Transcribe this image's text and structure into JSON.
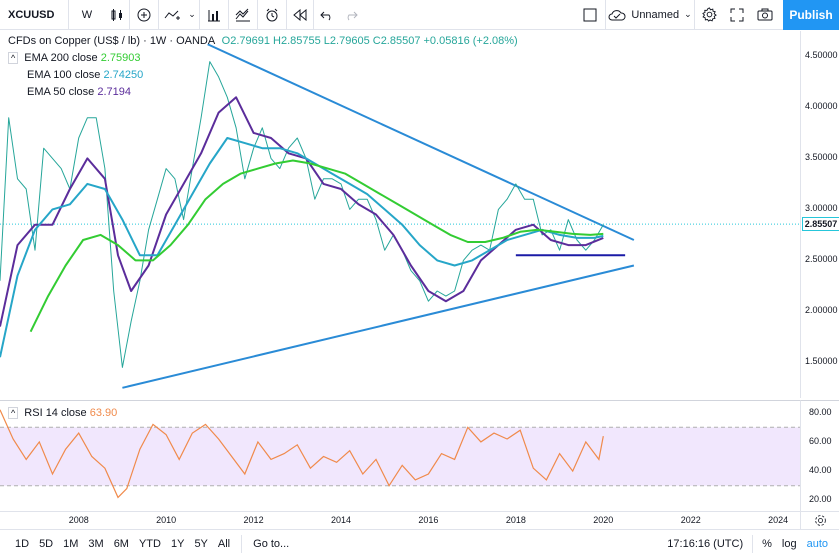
{
  "toolbar": {
    "symbol": "XCUUSD",
    "interval": "W",
    "layout_name": "Unnamed",
    "publish_label": "Publish"
  },
  "legend": {
    "title": "CFDs on Copper (US$ / lb) · 1W · OANDA",
    "ohlc": "O2.79691 H2.85755 L2.79605 C2.85507 +0.05816 (+2.08%)",
    "ema200_label": "EMA 200 close",
    "ema200_value": "2.75903",
    "ema100_label": "EMA 100 close",
    "ema100_value": "2.74250",
    "ema50_label": "EMA 50 close",
    "ema50_value": "2.7194",
    "rsi_label": "RSI 14 close",
    "rsi_value": "63.90"
  },
  "colors": {
    "accent": "#2196f3",
    "ema200": "#33cc33",
    "ema100": "#26a6c8",
    "ema50": "#5b2d9b",
    "rsi": "#f08a4b",
    "trendline": "#2a8bd6",
    "support": "#1a1aa6",
    "rsi_band": "#e8d7fb",
    "candle_up": "#26a69a",
    "candle_down": "#ef5350"
  },
  "chart_data": [
    {
      "type": "line",
      "title": "CFDs on Copper (US$ / lb) · 1W · OANDA",
      "ylim": [
        1.15,
        4.75
      ],
      "xlim": [
        2006.2,
        2024.5
      ],
      "y_ticks": [
        "4.50000",
        "4.00000",
        "3.50000",
        "3.00000",
        "2.50000",
        "2.00000",
        "1.50000"
      ],
      "y_tick_values": [
        4.5,
        4.0,
        3.5,
        3.0,
        2.5,
        2.0,
        1.5
      ],
      "x_ticks": [
        "2008",
        "2010",
        "2012",
        "2014",
        "2016",
        "2018",
        "2020",
        "2022",
        "2024"
      ],
      "x_tick_values": [
        2008,
        2010,
        2012,
        2014,
        2016,
        2018,
        2020,
        2022,
        2024
      ],
      "last_price": "2.85507",
      "last_price_value": 2.855,
      "series": [
        {
          "name": "XCUUSD",
          "x": [
            2006.2,
            2006.4,
            2006.6,
            2006.8,
            2007.0,
            2007.2,
            2007.4,
            2007.6,
            2007.8,
            2008.0,
            2008.2,
            2008.4,
            2008.6,
            2008.8,
            2009.0,
            2009.2,
            2009.4,
            2009.6,
            2009.8,
            2010.0,
            2010.2,
            2010.4,
            2010.6,
            2010.8,
            2011.0,
            2011.2,
            2011.4,
            2011.6,
            2011.8,
            2012.0,
            2012.2,
            2012.4,
            2012.6,
            2012.8,
            2013.0,
            2013.2,
            2013.4,
            2013.6,
            2013.8,
            2014.0,
            2014.2,
            2014.4,
            2014.6,
            2014.8,
            2015.0,
            2015.2,
            2015.4,
            2015.6,
            2015.8,
            2016.0,
            2016.2,
            2016.4,
            2016.6,
            2016.8,
            2017.0,
            2017.2,
            2017.4,
            2017.6,
            2017.8,
            2018.0,
            2018.2,
            2018.4,
            2018.6,
            2018.8,
            2019.0,
            2019.2,
            2019.4,
            2019.6,
            2019.8,
            2020.0
          ],
          "values": [
            2.3,
            3.9,
            3.3,
            3.2,
            2.6,
            3.6,
            3.5,
            3.4,
            3.2,
            3.7,
            3.9,
            3.9,
            3.4,
            2.2,
            1.45,
            1.9,
            2.3,
            2.8,
            3.1,
            3.4,
            3.3,
            2.9,
            3.4,
            3.9,
            4.45,
            4.3,
            4.1,
            3.8,
            3.3,
            3.6,
            3.8,
            3.5,
            3.4,
            3.6,
            3.7,
            3.5,
            3.1,
            3.3,
            3.3,
            3.25,
            3.0,
            3.1,
            3.1,
            2.9,
            2.6,
            2.75,
            2.6,
            2.4,
            2.3,
            2.1,
            2.2,
            2.15,
            2.2,
            2.5,
            2.6,
            2.65,
            2.6,
            3.0,
            3.1,
            3.25,
            3.1,
            3.1,
            2.75,
            2.8,
            2.6,
            2.9,
            2.7,
            2.6,
            2.7,
            2.85
          ]
        },
        {
          "name": "EMA 50 close",
          "x": [
            2006.2,
            2006.6,
            2007.0,
            2007.4,
            2007.8,
            2008.2,
            2008.6,
            2008.9,
            2009.2,
            2009.6,
            2010.0,
            2010.4,
            2010.8,
            2011.2,
            2011.6,
            2012.0,
            2012.4,
            2012.8,
            2013.2,
            2013.6,
            2014.0,
            2014.4,
            2014.8,
            2015.2,
            2015.6,
            2016.0,
            2016.4,
            2016.8,
            2017.2,
            2017.6,
            2018.0,
            2018.4,
            2018.8,
            2019.2,
            2019.6,
            2020.0
          ],
          "values": [
            1.85,
            2.65,
            2.85,
            2.85,
            3.2,
            3.5,
            3.3,
            2.55,
            2.2,
            2.45,
            2.95,
            3.25,
            3.55,
            3.95,
            4.1,
            3.75,
            3.7,
            3.55,
            3.5,
            3.25,
            3.2,
            3.05,
            2.95,
            2.75,
            2.45,
            2.2,
            2.1,
            2.2,
            2.5,
            2.65,
            2.8,
            2.85,
            2.7,
            2.65,
            2.65,
            2.72
          ]
        },
        {
          "name": "EMA 100 close",
          "x": [
            2006.2,
            2006.6,
            2007.0,
            2007.4,
            2007.8,
            2008.2,
            2008.6,
            2009.0,
            2009.4,
            2009.8,
            2010.2,
            2010.6,
            2011.0,
            2011.4,
            2011.8,
            2012.2,
            2012.6,
            2013.0,
            2013.4,
            2013.8,
            2014.2,
            2014.6,
            2015.0,
            2015.4,
            2015.8,
            2016.2,
            2016.6,
            2017.0,
            2017.4,
            2017.8,
            2018.2,
            2018.6,
            2019.0,
            2019.4,
            2019.8,
            2020.0
          ],
          "values": [
            1.55,
            2.35,
            2.8,
            3.0,
            3.05,
            3.25,
            3.2,
            2.9,
            2.55,
            2.55,
            2.85,
            3.15,
            3.45,
            3.7,
            3.65,
            3.6,
            3.6,
            3.55,
            3.45,
            3.35,
            3.25,
            3.15,
            3.0,
            2.85,
            2.65,
            2.5,
            2.45,
            2.5,
            2.6,
            2.7,
            2.75,
            2.8,
            2.75,
            2.72,
            2.72,
            2.74
          ]
        },
        {
          "name": "EMA 200 close",
          "x": [
            2006.9,
            2007.3,
            2007.7,
            2008.1,
            2008.5,
            2008.9,
            2009.3,
            2009.7,
            2010.1,
            2010.5,
            2010.9,
            2011.3,
            2011.7,
            2012.1,
            2012.5,
            2012.9,
            2013.3,
            2013.7,
            2014.1,
            2014.5,
            2014.9,
            2015.3,
            2015.7,
            2016.1,
            2016.5,
            2016.9,
            2017.3,
            2017.7,
            2018.1,
            2018.5,
            2018.9,
            2019.3,
            2019.7,
            2020.0
          ],
          "values": [
            1.8,
            2.15,
            2.45,
            2.7,
            2.75,
            2.65,
            2.5,
            2.5,
            2.65,
            2.85,
            3.1,
            3.25,
            3.35,
            3.4,
            3.45,
            3.48,
            3.45,
            3.4,
            3.35,
            3.25,
            3.15,
            3.05,
            2.95,
            2.85,
            2.75,
            2.68,
            2.68,
            2.72,
            2.78,
            2.8,
            2.78,
            2.76,
            2.75,
            2.76
          ]
        }
      ]
    },
    {
      "type": "line",
      "title": "RSI 14 close",
      "ylim": [
        12,
        88
      ],
      "y_ticks": [
        "80.00",
        "60.00",
        "40.00",
        "20.00"
      ],
      "y_tick_values": [
        80,
        60,
        40,
        20
      ],
      "band": [
        30,
        70
      ],
      "series": [
        {
          "name": "RSI 14 close",
          "x": [
            2006.2,
            2006.5,
            2006.8,
            2007.1,
            2007.4,
            2007.7,
            2008.0,
            2008.3,
            2008.6,
            2008.9,
            2009.1,
            2009.4,
            2009.7,
            2010.0,
            2010.3,
            2010.6,
            2010.9,
            2011.2,
            2011.5,
            2011.8,
            2012.1,
            2012.4,
            2012.7,
            2013.0,
            2013.3,
            2013.6,
            2013.9,
            2014.2,
            2014.5,
            2014.8,
            2015.1,
            2015.4,
            2015.7,
            2016.0,
            2016.3,
            2016.6,
            2016.9,
            2017.2,
            2017.5,
            2017.8,
            2018.1,
            2018.4,
            2018.7,
            2019.0,
            2019.3,
            2019.6,
            2019.9,
            2020.0
          ],
          "values": [
            82,
            62,
            48,
            60,
            38,
            55,
            66,
            50,
            42,
            22,
            28,
            55,
            72,
            65,
            48,
            66,
            72,
            62,
            50,
            38,
            60,
            48,
            52,
            58,
            42,
            50,
            46,
            54,
            38,
            48,
            30,
            44,
            34,
            38,
            52,
            48,
            70,
            60,
            66,
            62,
            68,
            42,
            34,
            52,
            40,
            60,
            48,
            64
          ]
        }
      ]
    }
  ],
  "time_axis": [
    "2008",
    "2010",
    "2012",
    "2014",
    "2016",
    "2018",
    "2020",
    "2022",
    "2024"
  ],
  "ranges": [
    "1D",
    "5D",
    "1M",
    "3M",
    "6M",
    "YTD",
    "1Y",
    "5Y",
    "All"
  ],
  "goto_label": "Go to...",
  "clock": "17:16:16 (UTC)",
  "scale_options": [
    "%",
    "log",
    "auto"
  ]
}
